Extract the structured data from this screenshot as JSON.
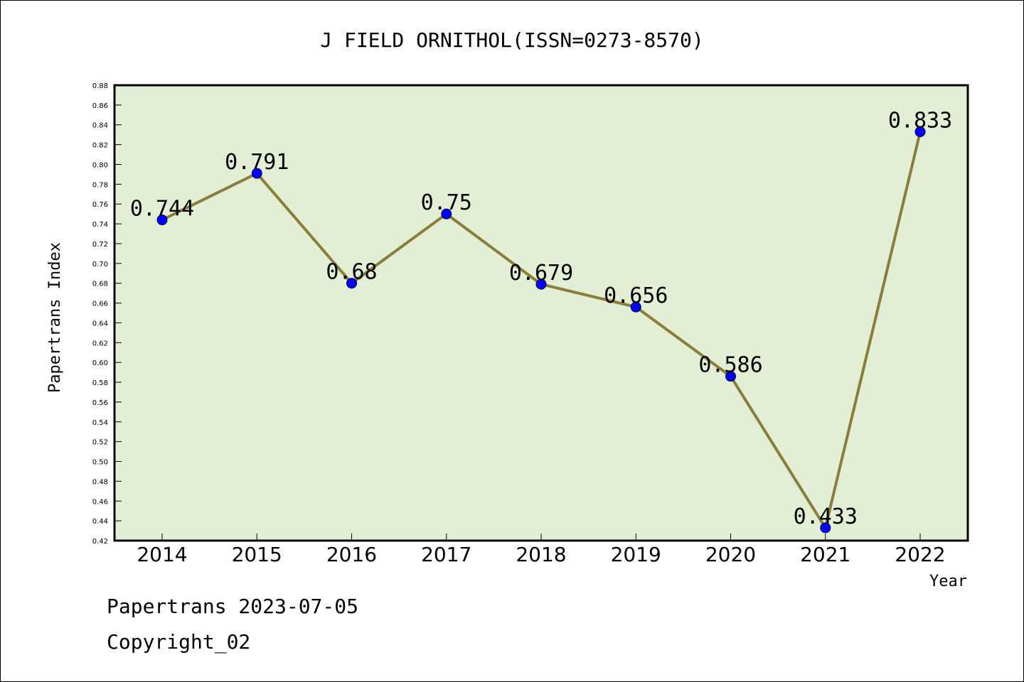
{
  "chart_data": {
    "type": "line",
    "title": "J FIELD ORNITHOL(ISSN=0273-8570)",
    "xlabel": "Year",
    "ylabel": "Papertrans Index",
    "categories": [
      "2014",
      "2015",
      "2016",
      "2017",
      "2018",
      "2019",
      "2020",
      "2021",
      "2022"
    ],
    "values": [
      0.744,
      0.791,
      0.68,
      0.75,
      0.679,
      0.656,
      0.586,
      0.433,
      0.833
    ],
    "data_labels": [
      "0.744",
      "0.791",
      "0.68",
      "0.75",
      "0.679",
      "0.656",
      "0.586",
      "0.433",
      "0.833"
    ],
    "ylim": [
      0.42,
      0.88
    ],
    "yticks": [
      "0.42",
      "0.44",
      "0.46",
      "0.48",
      "0.50",
      "0.52",
      "0.54",
      "0.56",
      "0.58",
      "0.60",
      "0.62",
      "0.64",
      "0.66",
      "0.68",
      "0.70",
      "0.72",
      "0.74",
      "0.76",
      "0.78",
      "0.80",
      "0.82",
      "0.84",
      "0.86",
      "0.88"
    ],
    "grid": false,
    "colors": {
      "plot_background": "#e2efd5",
      "line": "#8b7d3a",
      "marker": "#0000ff"
    }
  },
  "footer": {
    "line1": "Papertrans 2023-07-05",
    "line2": "Copyright_02"
  }
}
